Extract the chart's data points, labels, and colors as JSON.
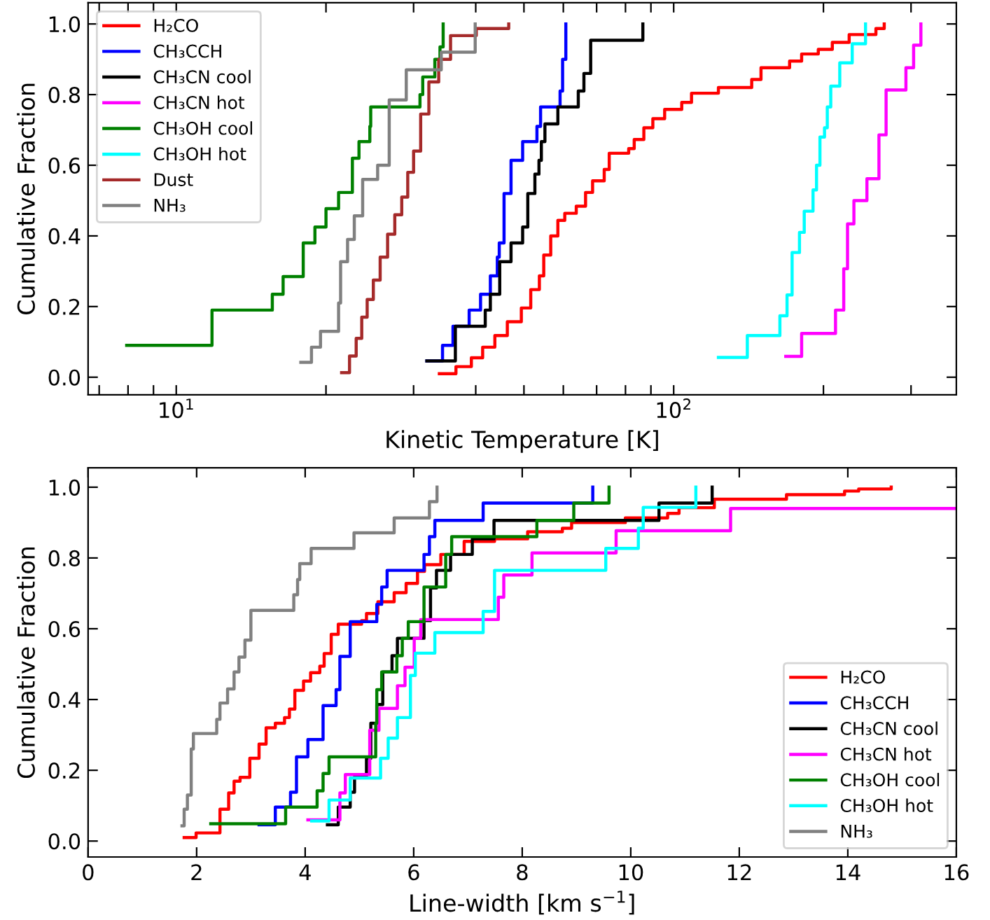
{
  "chart_data": [
    {
      "type": "step",
      "xlabel": "Kinetic Temperature [K]",
      "ylabel": "Cumulative Fraction",
      "log": "x",
      "legend": "top left",
      "grid": false,
      "xlim": [
        6.65,
        370
      ],
      "ylim": [
        -0.05,
        1.06
      ],
      "xticks": [
        {
          "value": 7,
          "label": null
        },
        {
          "value": 8,
          "label": null
        },
        {
          "value": 9,
          "label": null
        },
        {
          "value": 10,
          "label": "10$^{1}$"
        },
        {
          "value": 20,
          "label": null
        },
        {
          "value": 30,
          "label": null
        },
        {
          "value": 40,
          "label": null
        },
        {
          "value": 50,
          "label": null
        },
        {
          "value": 60,
          "label": null
        },
        {
          "value": 70,
          "label": null
        },
        {
          "value": 80,
          "label": null
        },
        {
          "value": 90,
          "label": null
        },
        {
          "value": 100,
          "label": "10$^{2}$"
        },
        {
          "value": 200,
          "label": null
        },
        {
          "value": 300,
          "label": null
        }
      ],
      "yticks": [
        {
          "value": 0,
          "label": "0.0"
        },
        {
          "value": 0.2,
          "label": "0.2"
        },
        {
          "value": 0.4,
          "label": "0.4"
        },
        {
          "value": 0.6,
          "label": "0.6"
        },
        {
          "value": 0.8,
          "label": "0.8"
        },
        {
          "value": 1.0,
          "label": "1.0"
        }
      ],
      "series": [
        {
          "name": "H₂CO",
          "color": "#ff0000",
          "x": [
            33.8,
            36.5,
            39.2,
            41.3,
            43.7,
            46.3,
            49.4,
            51.6,
            53.7,
            54.8,
            56.6,
            58.5,
            60.4,
            63.7,
            66.5,
            68.7,
            72.5,
            74.2,
            81.2,
            83.3,
            87.1,
            90.8,
            95.9,
            103.8,
            108.6,
            123.0,
            143.5,
            149.8,
            171,
            180.8,
            195.3,
            208.4,
            225.3,
            255,
            265
          ],
          "values": [
            0.01,
            0.03,
            0.055,
            0.085,
            0.118,
            0.157,
            0.196,
            0.248,
            0.287,
            0.346,
            0.4,
            0.444,
            0.464,
            0.484,
            0.523,
            0.556,
            0.588,
            0.634,
            0.647,
            0.673,
            0.706,
            0.732,
            0.758,
            0.778,
            0.804,
            0.82,
            0.843,
            0.876,
            0.895,
            0.915,
            0.928,
            0.948,
            0.97,
            0.987,
            1.0
          ]
        },
        {
          "name": "CH₃CCH",
          "color": "#0000ff",
          "x": [
            31.9,
            34.3,
            36.0,
            38.8,
            40.9,
            42.8,
            44.2,
            44.6,
            45.6,
            47.1,
            49.7,
            53.1,
            54.0,
            59.1,
            59.8,
            60.7
          ],
          "values": [
            0.046,
            0.09,
            0.144,
            0.19,
            0.235,
            0.287,
            0.34,
            0.38,
            0.52,
            0.614,
            0.667,
            0.71,
            0.765,
            0.81,
            0.9,
            1.0
          ]
        },
        {
          "name": "CH₃CN cool",
          "color": "#000000",
          "x": [
            31.9,
            36.4,
            41.8,
            42.8,
            44.7,
            47.1,
            49.7,
            50.9,
            52.6,
            53.6,
            54.2,
            55.1,
            58.5,
            64.3,
            66.0,
            68.1,
            86.7
          ],
          "values": [
            0.046,
            0.144,
            0.19,
            0.235,
            0.327,
            0.38,
            0.425,
            0.52,
            0.575,
            0.614,
            0.667,
            0.717,
            0.765,
            0.81,
            0.86,
            0.954,
            1.0
          ]
        },
        {
          "name": "CH₃CN hot",
          "color": "#ff00ff",
          "x": [
            168,
            180.8,
            211.5,
            219.7,
            223.6,
            230.3,
            244.6,
            258.6,
            267.3,
            293,
            303.6,
            314
          ],
          "values": [
            0.059,
            0.124,
            0.19,
            0.307,
            0.434,
            0.5,
            0.562,
            0.686,
            0.813,
            0.876,
            0.94,
            1.0
          ]
        },
        {
          "name": "CH₃OH cool",
          "color": "#008000",
          "x": [
            7.95,
            11.8,
            15.6,
            16.4,
            18.0,
            19.0,
            20.0,
            21.2,
            22.6,
            23.3,
            24.5,
            24.6,
            30.9,
            31.3,
            33.1,
            33.9,
            34.4
          ],
          "values": [
            0.09,
            0.19,
            0.235,
            0.285,
            0.38,
            0.425,
            0.477,
            0.523,
            0.62,
            0.667,
            0.71,
            0.765,
            0.8,
            0.85,
            0.9,
            0.935,
            1.0
          ]
        },
        {
          "name": "CH₃OH hot",
          "color": "#00ffff",
          "x": [
            123.0,
            140.6,
            163.5,
            169,
            173,
            179,
            183,
            190.6,
            193.7,
            196.8,
            201,
            203.6,
            206.9,
            215.7,
            228.5,
            243
          ],
          "values": [
            0.056,
            0.118,
            0.174,
            0.233,
            0.353,
            0.41,
            0.47,
            0.53,
            0.6,
            0.68,
            0.706,
            0.765,
            0.824,
            0.89,
            0.944,
            1.0
          ]
        },
        {
          "name": "Dust",
          "color": "#a52a2a",
          "x": [
            21.5,
            22.3,
            23.0,
            23.6,
            24.2,
            24.9,
            25.7,
            26.6,
            27.5,
            28.4,
            29.2,
            30.0,
            31.0,
            32.2,
            33.7,
            35.6,
            40.1,
            46.6
          ],
          "values": [
            0.013,
            0.06,
            0.11,
            0.17,
            0.22,
            0.275,
            0.34,
            0.405,
            0.46,
            0.51,
            0.58,
            0.64,
            0.745,
            0.836,
            0.9,
            0.967,
            0.987,
            1.0
          ]
        },
        {
          "name": "NH₃",
          "color": "#808080",
          "x": [
            17.8,
            18.7,
            19.5,
            21.2,
            21.4,
            22.1,
            22.8,
            23.7,
            25.4,
            26.8,
            29.0,
            34.1,
            39.9
          ],
          "values": [
            0.042,
            0.085,
            0.13,
            0.21,
            0.327,
            0.39,
            0.457,
            0.56,
            0.6,
            0.785,
            0.87,
            0.92,
            1.0
          ]
        }
      ]
    },
    {
      "type": "step",
      "xlabel": "Line-width [km s$^{−1}$]",
      "ylabel": "Cumulative Fraction",
      "legend": "bottom right",
      "grid": false,
      "xlim": [
        0,
        16
      ],
      "ylim": [
        -0.045,
        1.055
      ],
      "xticks": [
        0,
        2,
        4,
        6,
        8,
        10,
        12,
        14,
        16
      ],
      "yticks": [
        {
          "value": 0,
          "label": "0.0"
        },
        {
          "value": 0.2,
          "label": "0.2"
        },
        {
          "value": 0.4,
          "label": "0.4"
        },
        {
          "value": 0.6,
          "label": "0.6"
        },
        {
          "value": 0.8,
          "label": "0.8"
        },
        {
          "value": 1.0,
          "label": "1.0"
        }
      ],
      "series": [
        {
          "name": "H₂CO",
          "color": "#ff0000",
          "x": [
            1.77,
            1.99,
            2.43,
            2.59,
            2.69,
            2.8,
            2.98,
            3.15,
            3.28,
            3.45,
            3.62,
            3.71,
            3.81,
            3.97,
            4.1,
            4.27,
            4.35,
            4.48,
            4.61,
            5.04,
            5.13,
            5.34,
            5.64,
            5.86,
            6.07,
            6.2,
            6.5,
            6.93,
            7.49,
            8.1,
            8.74,
            8.91,
            9.9,
            10.68,
            10.89,
            11.54,
            12.87,
            13.94,
            14.2,
            14.8
          ],
          "values": [
            0.01,
            0.023,
            0.09,
            0.136,
            0.169,
            0.18,
            0.234,
            0.274,
            0.32,
            0.333,
            0.349,
            0.373,
            0.426,
            0.452,
            0.476,
            0.494,
            0.53,
            0.584,
            0.613,
            0.623,
            0.643,
            0.676,
            0.702,
            0.728,
            0.762,
            0.781,
            0.81,
            0.847,
            0.854,
            0.874,
            0.884,
            0.9,
            0.913,
            0.926,
            0.942,
            0.966,
            0.979,
            0.989,
            0.995,
            1.0
          ]
        },
        {
          "name": "CH₃CCH",
          "color": "#0000ff",
          "x": [
            3.15,
            3.45,
            3.73,
            3.84,
            4.05,
            4.33,
            4.57,
            4.64,
            4.83,
            5.32,
            5.41,
            5.51,
            6.19,
            6.29,
            6.39,
            7.28,
            9.3
          ],
          "values": [
            0.046,
            0.096,
            0.138,
            0.238,
            0.287,
            0.383,
            0.428,
            0.522,
            0.62,
            0.669,
            0.718,
            0.765,
            0.81,
            0.86,
            0.906,
            0.955,
            1.0
          ]
        },
        {
          "name": "CH₃CN cool",
          "color": "#000000",
          "x": [
            4.41,
            4.61,
            4.83,
            4.91,
            5.13,
            5.21,
            5.32,
            5.43,
            5.6,
            5.7,
            6.19,
            6.31,
            6.42,
            6.68,
            7.08,
            7.48,
            10.52,
            11.5
          ],
          "values": [
            0.046,
            0.096,
            0.138,
            0.182,
            0.234,
            0.333,
            0.386,
            0.478,
            0.524,
            0.573,
            0.623,
            0.715,
            0.765,
            0.81,
            0.854,
            0.906,
            0.955,
            1.0
          ]
        },
        {
          "name": "CH₃CN hot",
          "color": "#ff00ff",
          "x": [
            4.05,
            4.64,
            4.74,
            5.19,
            5.36,
            5.7,
            5.84,
            6.01,
            6.13,
            7.56,
            7.66,
            8.18,
            9.73,
            11.84,
            16.0
          ],
          "values": [
            0.06,
            0.136,
            0.188,
            0.313,
            0.375,
            0.439,
            0.491,
            0.573,
            0.626,
            0.689,
            0.752,
            0.814,
            0.877,
            0.94,
            0.94
          ]
        },
        {
          "name": "CH₃OH cool",
          "color": "#008000",
          "x": [
            2.26,
            3.64,
            4.22,
            4.33,
            4.44,
            5.3,
            5.32,
            5.41,
            5.69,
            5.79,
            5.9,
            6.19,
            6.59,
            6.7,
            8.27,
            8.95,
            9.6
          ],
          "values": [
            0.049,
            0.096,
            0.142,
            0.191,
            0.238,
            0.333,
            0.428,
            0.478,
            0.524,
            0.573,
            0.62,
            0.718,
            0.81,
            0.86,
            0.906,
            0.955,
            1.0
          ]
        },
        {
          "name": "CH₃OH hot",
          "color": "#00ffff",
          "x": [
            4.12,
            4.44,
            4.83,
            5.39,
            5.53,
            5.7,
            5.94,
            6.03,
            6.39,
            7.28,
            7.49,
            9.54,
            10.14,
            10.23,
            11.2
          ],
          "values": [
            0.057,
            0.116,
            0.178,
            0.234,
            0.291,
            0.349,
            0.468,
            0.531,
            0.589,
            0.649,
            0.765,
            0.827,
            0.884,
            0.943,
            1.0
          ]
        },
        {
          "name": "NH₃",
          "color": "#808080",
          "x": [
            1.73,
            1.77,
            1.83,
            1.9,
            1.94,
            2.37,
            2.43,
            2.57,
            2.69,
            2.78,
            2.89,
            3.0,
            3.79,
            3.86,
            3.9,
            4.11,
            4.9,
            5.64,
            6.29,
            6.43
          ],
          "values": [
            0.043,
            0.09,
            0.13,
            0.26,
            0.304,
            0.344,
            0.39,
            0.43,
            0.478,
            0.52,
            0.568,
            0.652,
            0.696,
            0.739,
            0.784,
            0.827,
            0.871,
            0.913,
            0.959,
            1.0
          ]
        }
      ]
    }
  ]
}
